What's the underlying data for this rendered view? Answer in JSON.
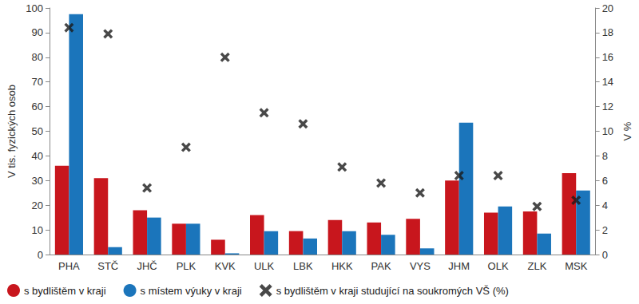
{
  "chart_data": {
    "type": "bar",
    "categories": [
      "PHA",
      "STČ",
      "JHČ",
      "PLK",
      "KVK",
      "ULK",
      "LBK",
      "HKK",
      "PAK",
      "VYS",
      "JHM",
      "OLK",
      "ZLK",
      "MSK"
    ],
    "series": [
      {
        "name": "s bydlištěm v kraji",
        "type": "bar",
        "color": "#c8161d",
        "values": [
          36,
          31,
          18,
          12.5,
          6,
          16,
          9.5,
          14,
          13,
          14.5,
          30,
          17,
          17.5,
          33
        ]
      },
      {
        "name": "s místem výuky v kraji",
        "type": "bar",
        "color": "#1b75bb",
        "values": [
          97.5,
          3,
          15,
          12.5,
          0.5,
          9.5,
          6.5,
          9.5,
          8,
          2.5,
          53.5,
          19.5,
          8.5,
          26
        ]
      },
      {
        "name": "s bydlištěm v kraji studující na soukromých VŠ (%)",
        "type": "scatter",
        "marker": "x",
        "color": "#1a1a1a",
        "axis": "y2",
        "values": [
          18.4,
          17.9,
          5.4,
          8.7,
          16.0,
          11.5,
          10.6,
          7.1,
          5.8,
          5.0,
          6.4,
          6.4,
          3.9,
          4.4
        ]
      }
    ],
    "ylabel": "V tis. fyzických osob",
    "y2label": "V %",
    "ylim": [
      0,
      100
    ],
    "yticks": [
      0,
      10,
      20,
      30,
      40,
      50,
      60,
      70,
      80,
      90,
      100
    ],
    "y2lim": [
      0,
      20
    ],
    "y2ticks": [
      0,
      2,
      4,
      6,
      8,
      10,
      12,
      14,
      16,
      18,
      20
    ],
    "grid": false,
    "legend": "bottom"
  }
}
